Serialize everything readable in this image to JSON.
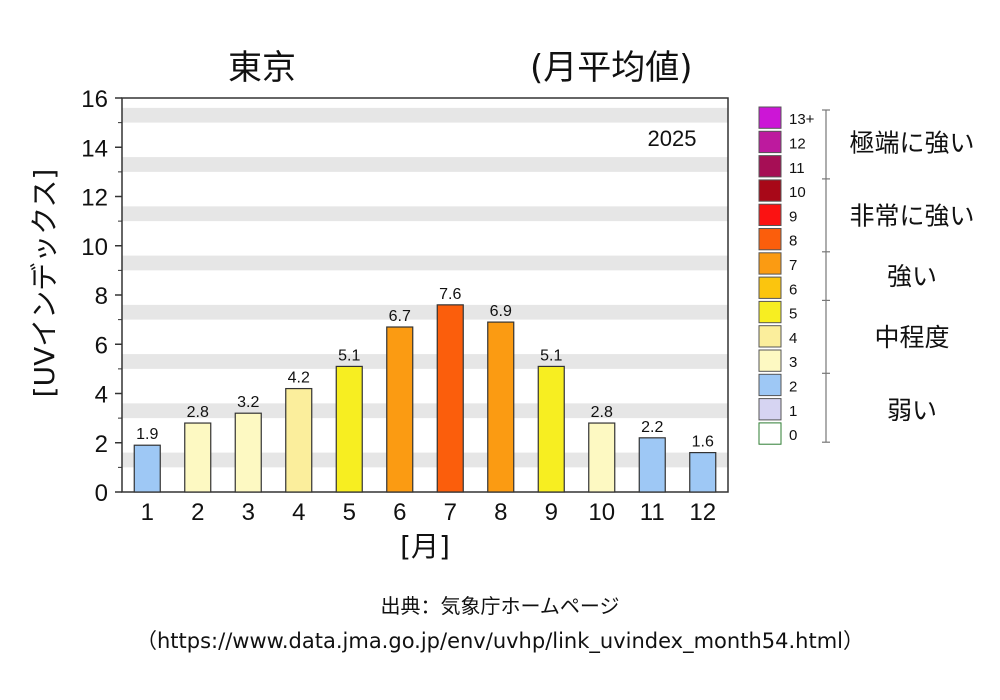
{
  "title": "東京",
  "subtitle": "(月平均値)",
  "source_label": "出典：気象庁ホームページ",
  "source_url": "（https://www.data.jma.go.jp/env/uvhp/link_uvindex_month54.html）",
  "chart_data": {
    "type": "bar",
    "year_label": "2025",
    "xlabel": "[月]",
    "ylabel": "[UVインデックス]",
    "ylim": [
      0,
      16
    ],
    "yticks": [
      0,
      2,
      4,
      6,
      8,
      10,
      12,
      14,
      16
    ],
    "categories": [
      "1",
      "2",
      "3",
      "4",
      "5",
      "6",
      "7",
      "8",
      "9",
      "10",
      "11",
      "12"
    ],
    "values": [
      1.9,
      2.8,
      3.2,
      4.2,
      5.1,
      6.7,
      7.6,
      6.9,
      5.1,
      2.8,
      2.2,
      1.6
    ],
    "data_labels": [
      "1.9",
      "2.8",
      "3.2",
      "4.2",
      "5.1",
      "6.7",
      "7.6",
      "6.9",
      "5.1",
      "2.8",
      "2.2",
      "1.6"
    ],
    "bar_colors": [
      "#9ec8f5",
      "#fdf9c2",
      "#fdf9c2",
      "#fbee9c",
      "#f7ee21",
      "#fb9b12",
      "#fb5e0c",
      "#fb9b12",
      "#f7ee21",
      "#fdf9c2",
      "#9ec8f5",
      "#9ec8f5"
    ],
    "grid": "alternating horizontal bands",
    "legend": {
      "position": "right",
      "levels": [
        {
          "label": "13+",
          "color": "#cc16d6"
        },
        {
          "label": "12",
          "color": "#bd1a9e"
        },
        {
          "label": "11",
          "color": "#a60e55"
        },
        {
          "label": "10",
          "color": "#a80818"
        },
        {
          "label": "9",
          "color": "#fb1212"
        },
        {
          "label": "8",
          "color": "#fb5e0c"
        },
        {
          "label": "7",
          "color": "#fb9b12"
        },
        {
          "label": "6",
          "color": "#fbc50e"
        },
        {
          "label": "5",
          "color": "#f7ee21"
        },
        {
          "label": "4",
          "color": "#fbee9c"
        },
        {
          "label": "3",
          "color": "#fdf9c2"
        },
        {
          "label": "2",
          "color": "#9ec8f5"
        },
        {
          "label": "1",
          "color": "#d6d4f2"
        },
        {
          "label": "0",
          "color": "#ffffff"
        }
      ],
      "categories": [
        {
          "label": "極端に強い",
          "from": 11,
          "to": 13
        },
        {
          "label": "非常に強い",
          "from": 8,
          "to": 10
        },
        {
          "label": "強い",
          "from": 6,
          "to": 7
        },
        {
          "label": "中程度",
          "from": 3,
          "to": 5
        },
        {
          "label": "弱い",
          "from": 0,
          "to": 2
        }
      ]
    }
  }
}
